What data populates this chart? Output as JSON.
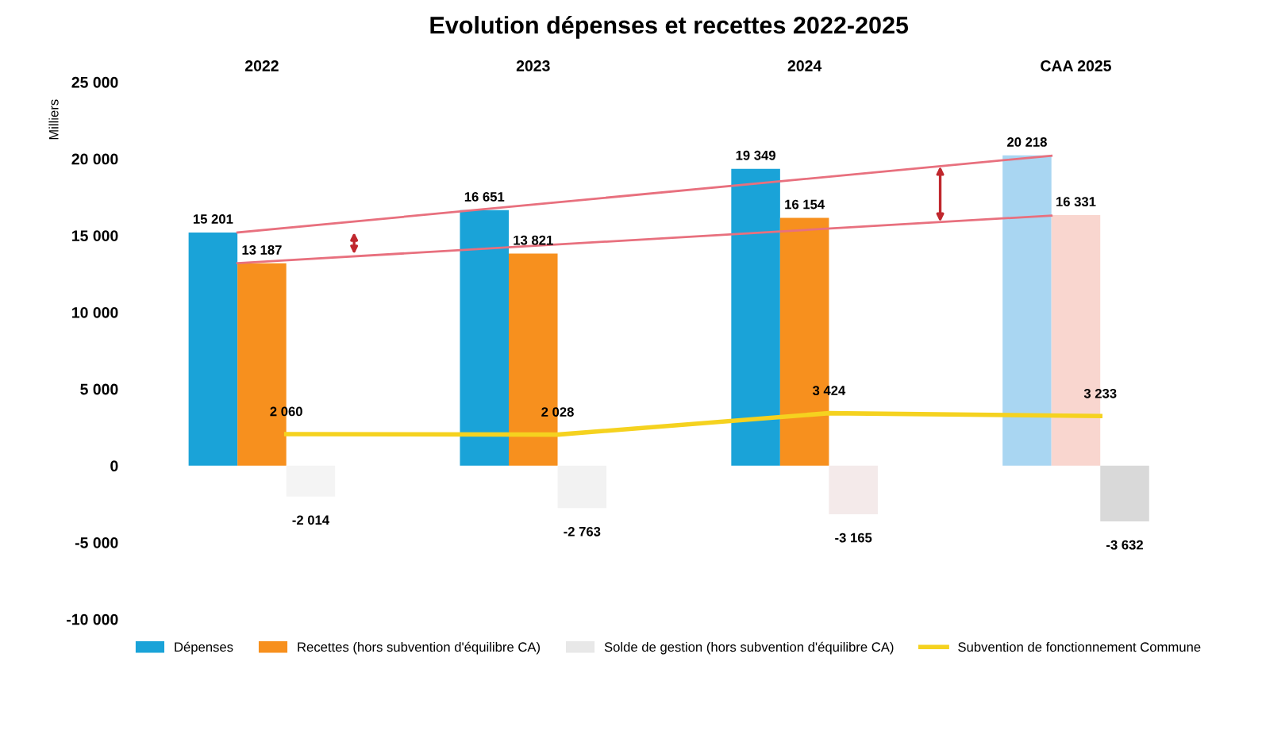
{
  "chart_data": {
    "type": "bar",
    "title": "Evolution dépenses et recettes 2022-2025",
    "ylabel": "Milliers",
    "categories": [
      "2022",
      "2023",
      "2024",
      "CAA 2025"
    ],
    "series": [
      {
        "name": "Dépenses",
        "colors": [
          "#1aa3d8",
          "#1aa3d8",
          "#1aa3d8",
          "#a9d6f2"
        ],
        "color": "#1aa3d8",
        "values": [
          15201,
          16651,
          19349,
          20218
        ],
        "value_labels": [
          "15 201",
          "16 651",
          "19 349",
          "20 218"
        ]
      },
      {
        "name": "Recettes (hors subvention d'équilibre CA)",
        "colors": [
          "#f7901e",
          "#f7901e",
          "#f7901e",
          "#f9d6cf"
        ],
        "color": "#f7901e",
        "values": [
          13187,
          13821,
          16154,
          16331
        ],
        "value_labels": [
          "13 187",
          "13 821",
          "16 154",
          "16 331"
        ]
      },
      {
        "name": "Solde de gestion (hors subvention d'équilibre CA)",
        "colors": [
          "#f4f4f4",
          "#f2f2f2",
          "#f4eaea",
          "#d9d9d9"
        ],
        "color": "#e8e8e8",
        "values": [
          -2014,
          -2763,
          -3165,
          -3632
        ],
        "value_labels": [
          "-2 014",
          "-2 763",
          "-3 165",
          "-3 632"
        ]
      },
      {
        "name": "Subvention de fonctionnement Commune",
        "type": "line",
        "color": "#f5d21f",
        "values": [
          2060,
          2028,
          3424,
          3233
        ],
        "value_labels": [
          "2 060",
          "2 028",
          "3 424",
          "3 233"
        ]
      },
      {
        "type": "line",
        "color": "#e8707e",
        "values": [
          15200,
          null,
          null,
          20200
        ]
      },
      {
        "type": "line",
        "color": "#e8707e",
        "values": [
          13200,
          null,
          null,
          16300
        ]
      }
    ],
    "ylim": [
      -10000,
      25000
    ],
    "yticks": [
      {
        "value": -10000,
        "label": "-10 000"
      },
      {
        "value": -5000,
        "label": "-5 000"
      },
      0,
      {
        "value": 5000,
        "label": "5 000"
      },
      {
        "value": 10000,
        "label": "10 000"
      },
      {
        "value": 15000,
        "label": "15 000"
      },
      {
        "value": 20000,
        "label": "20 000"
      },
      {
        "value": 25000,
        "label": "25 000"
      }
    ],
    "grid": false,
    "legend": "bottom"
  }
}
